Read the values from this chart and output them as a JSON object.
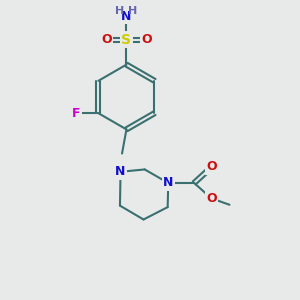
{
  "background_color": "#e8eaea",
  "bond_color": "#3a7070",
  "bond_width": 1.5,
  "atom_colors": {
    "N": "#1010cc",
    "O": "#cc1010",
    "S": "#cccc00",
    "F": "#cc00cc",
    "H": "#6666aa",
    "C": "#3a7070"
  },
  "font_size": 9
}
